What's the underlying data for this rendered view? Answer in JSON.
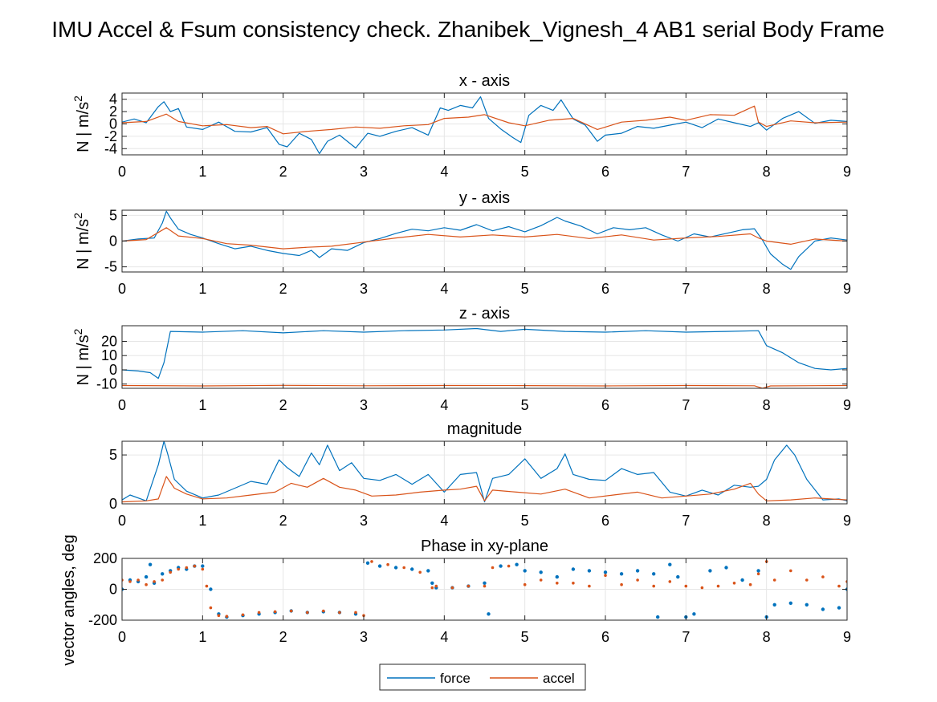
{
  "figure_title": "IMU Accel & Fsum consistency check. Zhanibek_Vignesh_4     AB1     serial  Body Frame",
  "legend": [
    {
      "label": "force",
      "color": "#0072BD"
    },
    {
      "label": "accel",
      "color": "#D95319"
    }
  ],
  "chart_data": [
    {
      "type": "line",
      "title": "x - axis",
      "ylabel": "N | m/s²",
      "xlim": [
        0,
        9
      ],
      "ylim": [
        -5,
        5
      ],
      "xticks": [
        0,
        1,
        2,
        3,
        4,
        5,
        6,
        7,
        8,
        9
      ],
      "yticks": [
        -4,
        -2,
        0,
        2,
        4
      ],
      "grid": true,
      "series": [
        {
          "name": "force",
          "color": "#0072BD",
          "style": "line",
          "x": [
            0,
            0.15,
            0.3,
            0.45,
            0.52,
            0.6,
            0.7,
            0.8,
            1.0,
            1.2,
            1.4,
            1.6,
            1.8,
            1.95,
            2.05,
            2.2,
            2.35,
            2.45,
            2.55,
            2.7,
            2.9,
            3.05,
            3.2,
            3.4,
            3.6,
            3.8,
            3.95,
            4.05,
            4.2,
            4.35,
            4.45,
            4.55,
            4.7,
            4.85,
            4.95,
            5.05,
            5.2,
            5.35,
            5.45,
            5.6,
            5.75,
            5.9,
            6.0,
            6.2,
            6.4,
            6.6,
            6.8,
            7.0,
            7.2,
            7.4,
            7.6,
            7.8,
            7.9,
            8.0,
            8.2,
            8.4,
            8.6,
            8.8,
            9.0
          ],
          "y": [
            0.3,
            0.8,
            0.2,
            2.8,
            3.6,
            2.0,
            2.5,
            -0.5,
            -0.9,
            0.3,
            -1.2,
            -1.3,
            -0.6,
            -3.3,
            -3.7,
            -1.5,
            -2.5,
            -4.8,
            -2.8,
            -1.8,
            -3.9,
            -1.5,
            -2.0,
            -1.2,
            -0.6,
            -1.8,
            2.6,
            2.2,
            3.0,
            2.6,
            4.4,
            0.9,
            -0.8,
            -2.2,
            -3.0,
            1.4,
            3.0,
            2.2,
            3.9,
            0.8,
            -0.2,
            -2.8,
            -1.8,
            -1.5,
            -0.4,
            -0.7,
            -0.2,
            0.3,
            -0.6,
            0.8,
            0.2,
            -0.4,
            0.2,
            -1.0,
            0.9,
            2.0,
            0.1,
            0.6,
            0.4
          ]
        },
        {
          "name": "accel",
          "color": "#D95319",
          "style": "line",
          "x": [
            0,
            0.3,
            0.55,
            0.7,
            1.0,
            1.3,
            1.6,
            1.8,
            2.0,
            2.3,
            2.6,
            2.9,
            3.2,
            3.5,
            3.8,
            4.0,
            4.3,
            4.5,
            4.8,
            5.0,
            5.3,
            5.6,
            5.9,
            6.2,
            6.5,
            6.8,
            7.0,
            7.3,
            7.6,
            7.85,
            7.9,
            8.0,
            8.3,
            8.6,
            9.0
          ],
          "y": [
            0.2,
            0.4,
            1.6,
            0.4,
            -0.3,
            -0.1,
            -0.6,
            -0.4,
            -1.6,
            -1.2,
            -0.9,
            -0.5,
            -0.7,
            -0.3,
            -0.1,
            0.9,
            1.1,
            1.5,
            0.2,
            -0.3,
            0.6,
            0.9,
            -0.9,
            0.3,
            0.6,
            1.1,
            0.6,
            1.5,
            1.4,
            2.9,
            0.3,
            -0.4,
            0.5,
            0.2,
            0.3
          ]
        }
      ]
    },
    {
      "type": "line",
      "title": "y - axis",
      "ylabel": "N | m/s²",
      "xlim": [
        0,
        9
      ],
      "ylim": [
        -6,
        6
      ],
      "xticks": [
        0,
        1,
        2,
        3,
        4,
        5,
        6,
        7,
        8,
        9
      ],
      "yticks": [
        -5,
        0,
        5
      ],
      "grid": true,
      "series": [
        {
          "name": "force",
          "color": "#0072BD",
          "style": "line",
          "x": [
            0,
            0.2,
            0.4,
            0.5,
            0.55,
            0.6,
            0.7,
            0.85,
            1.0,
            1.2,
            1.4,
            1.6,
            1.8,
            2.0,
            2.2,
            2.35,
            2.45,
            2.6,
            2.8,
            3.0,
            3.2,
            3.4,
            3.6,
            3.8,
            4.0,
            4.2,
            4.4,
            4.6,
            4.8,
            5.0,
            5.2,
            5.4,
            5.5,
            5.7,
            5.9,
            6.1,
            6.3,
            6.5,
            6.7,
            6.9,
            7.1,
            7.3,
            7.5,
            7.7,
            7.85,
            7.95,
            8.05,
            8.2,
            8.3,
            8.4,
            8.6,
            8.8,
            9.0
          ],
          "y": [
            0.0,
            0.4,
            0.6,
            3.5,
            5.8,
            4.5,
            2.3,
            1.3,
            0.6,
            -0.5,
            -1.5,
            -1.0,
            -1.8,
            -2.4,
            -2.8,
            -1.8,
            -3.2,
            -1.5,
            -1.8,
            -0.3,
            0.5,
            1.5,
            2.3,
            2.0,
            2.6,
            2.1,
            3.2,
            2.0,
            2.8,
            1.8,
            3.0,
            4.6,
            3.9,
            2.9,
            1.4,
            2.6,
            2.2,
            2.6,
            1.2,
            0.0,
            1.4,
            0.8,
            1.5,
            2.2,
            2.4,
            0.2,
            -2.5,
            -4.5,
            -5.5,
            -3.0,
            0.0,
            0.6,
            0.2
          ]
        },
        {
          "name": "accel",
          "color": "#D95319",
          "style": "line",
          "x": [
            0,
            0.3,
            0.55,
            0.7,
            1.0,
            1.3,
            1.6,
            2.0,
            2.3,
            2.6,
            3.0,
            3.4,
            3.8,
            4.2,
            4.6,
            5.0,
            5.4,
            5.8,
            6.2,
            6.6,
            7.0,
            7.4,
            7.8,
            7.9,
            8.0,
            8.3,
            8.6,
            9.0
          ],
          "y": [
            0.0,
            0.3,
            2.6,
            1.0,
            0.5,
            -0.5,
            -0.8,
            -1.5,
            -1.2,
            -1.0,
            -0.2,
            0.6,
            1.3,
            0.8,
            1.2,
            0.8,
            1.3,
            0.5,
            1.2,
            0.2,
            0.6,
            0.9,
            1.4,
            0.6,
            0.0,
            -0.6,
            0.4,
            0.0
          ]
        }
      ]
    },
    {
      "type": "line",
      "title": "z - axis",
      "ylabel": "N | m/s²",
      "xlim": [
        0,
        9
      ],
      "ylim": [
        -13,
        31
      ],
      "xticks": [
        0,
        1,
        2,
        3,
        4,
        5,
        6,
        7,
        8,
        9
      ],
      "yticks": [
        -10,
        0,
        10,
        20
      ],
      "grid": true,
      "series": [
        {
          "name": "force",
          "color": "#0072BD",
          "style": "line",
          "x": [
            0,
            0.2,
            0.35,
            0.45,
            0.52,
            0.6,
            1.0,
            1.5,
            2.0,
            2.5,
            3.0,
            3.5,
            4.0,
            4.4,
            4.7,
            5.0,
            5.5,
            6.0,
            6.5,
            7.0,
            7.5,
            7.9,
            8.0,
            8.2,
            8.4,
            8.6,
            8.8,
            9.0
          ],
          "y": [
            0.0,
            -0.8,
            -2.0,
            -6.0,
            5.0,
            27.0,
            26.5,
            27.5,
            26.0,
            27.5,
            26.5,
            27.5,
            28.0,
            29.0,
            27.0,
            28.5,
            27.0,
            26.5,
            27.5,
            26.5,
            27.0,
            27.5,
            17.0,
            12.0,
            5.0,
            1.0,
            0.0,
            1.0
          ]
        },
        {
          "name": "accel",
          "color": "#D95319",
          "style": "line",
          "x": [
            0,
            1,
            2,
            3,
            4,
            5,
            6,
            7,
            7.85,
            7.95,
            8.05,
            9.0
          ],
          "y": [
            -11.0,
            -11.3,
            -10.9,
            -11.2,
            -11.0,
            -11.1,
            -11.3,
            -11.0,
            -11.2,
            -13.0,
            -11.3,
            -11.0
          ]
        }
      ]
    },
    {
      "type": "line",
      "title": "magnitude",
      "ylabel": "",
      "xlim": [
        0,
        9
      ],
      "ylim": [
        0,
        6.4
      ],
      "xticks": [
        0,
        1,
        2,
        3,
        4,
        5,
        6,
        7,
        8,
        9
      ],
      "yticks": [
        0,
        5
      ],
      "grid": true,
      "series": [
        {
          "name": "force",
          "color": "#0072BD",
          "style": "line",
          "x": [
            0,
            0.1,
            0.3,
            0.45,
            0.52,
            0.57,
            0.65,
            0.8,
            1.0,
            1.2,
            1.4,
            1.6,
            1.8,
            1.95,
            2.05,
            2.2,
            2.35,
            2.45,
            2.55,
            2.7,
            2.85,
            3.0,
            3.2,
            3.4,
            3.6,
            3.8,
            4.0,
            4.2,
            4.4,
            4.5,
            4.6,
            4.8,
            5.0,
            5.2,
            5.4,
            5.5,
            5.6,
            5.8,
            6.0,
            6.2,
            6.4,
            6.6,
            6.8,
            7.0,
            7.2,
            7.4,
            7.6,
            7.8,
            7.9,
            8.0,
            8.1,
            8.25,
            8.35,
            8.5,
            8.7,
            8.9,
            9.0
          ],
          "y": [
            0.4,
            0.9,
            0.3,
            4.0,
            6.4,
            5.0,
            2.5,
            1.3,
            0.6,
            0.9,
            1.6,
            2.3,
            2.0,
            4.5,
            3.7,
            2.8,
            5.2,
            4.0,
            6.0,
            3.4,
            4.2,
            2.6,
            2.4,
            3.0,
            2.0,
            3.0,
            1.2,
            3.0,
            3.2,
            0.2,
            2.6,
            3.0,
            4.6,
            2.6,
            3.6,
            5.1,
            3.0,
            2.5,
            2.4,
            3.6,
            3.0,
            3.2,
            1.2,
            0.8,
            1.4,
            0.9,
            1.9,
            1.7,
            1.8,
            2.5,
            4.5,
            6.0,
            5.0,
            2.5,
            0.4,
            0.5,
            0.3
          ]
        },
        {
          "name": "accel",
          "color": "#D95319",
          "style": "line",
          "x": [
            0,
            0.3,
            0.45,
            0.55,
            0.65,
            0.8,
            1.0,
            1.3,
            1.6,
            1.9,
            2.1,
            2.3,
            2.5,
            2.7,
            2.9,
            3.1,
            3.4,
            3.7,
            4.0,
            4.2,
            4.4,
            4.5,
            4.6,
            4.9,
            5.2,
            5.5,
            5.8,
            6.1,
            6.4,
            6.7,
            7.0,
            7.3,
            7.6,
            7.8,
            7.9,
            8.0,
            8.3,
            8.6,
            9.0
          ],
          "y": [
            0.2,
            0.3,
            0.5,
            2.8,
            1.6,
            1.0,
            0.5,
            0.6,
            0.9,
            1.2,
            2.1,
            1.7,
            2.6,
            1.7,
            1.4,
            0.8,
            0.9,
            1.2,
            1.4,
            1.5,
            1.8,
            0.3,
            1.4,
            1.2,
            1.0,
            1.5,
            0.6,
            0.9,
            1.2,
            0.6,
            0.8,
            1.0,
            1.5,
            2.1,
            1.0,
            0.3,
            0.4,
            0.6,
            0.4
          ]
        }
      ]
    },
    {
      "type": "scatter",
      "title": "Phase in xy-plane",
      "ylabel": "vector angles, deg",
      "xlim": [
        0,
        9
      ],
      "ylim": [
        -200,
        200
      ],
      "xticks": [
        0,
        1,
        2,
        3,
        4,
        5,
        6,
        7,
        8,
        9
      ],
      "yticks": [
        -200,
        0,
        200
      ],
      "grid": true,
      "series": [
        {
          "name": "force",
          "color": "#0072BD",
          "style": "points",
          "x": [
            0,
            0.1,
            0.2,
            0.3,
            0.35,
            0.4,
            0.5,
            0.6,
            0.7,
            0.8,
            0.9,
            1.0,
            1.1,
            1.2,
            1.3,
            1.5,
            1.7,
            1.9,
            2.1,
            2.3,
            2.5,
            2.7,
            2.9,
            3.05,
            3.2,
            3.4,
            3.6,
            3.8,
            3.85,
            3.9,
            4.1,
            4.3,
            4.5,
            4.55,
            4.7,
            4.9,
            5.0,
            5.2,
            5.4,
            5.6,
            5.8,
            6.0,
            6.2,
            6.4,
            6.6,
            6.65,
            6.8,
            6.9,
            7.0,
            7.1,
            7.3,
            7.5,
            7.7,
            7.9,
            8.0,
            8.1,
            8.3,
            8.5,
            8.7,
            8.9,
            9.0
          ],
          "y": [
            0,
            60,
            50,
            80,
            160,
            40,
            100,
            120,
            140,
            130,
            150,
            150,
            0,
            -160,
            -180,
            -170,
            -160,
            -150,
            -140,
            -150,
            -145,
            -150,
            -160,
            170,
            150,
            140,
            130,
            120,
            40,
            10,
            10,
            20,
            40,
            -160,
            150,
            160,
            120,
            110,
            80,
            130,
            120,
            110,
            100,
            120,
            100,
            -180,
            160,
            80,
            -180,
            -160,
            120,
            140,
            60,
            120,
            -180,
            -100,
            -90,
            -100,
            -130,
            -120,
            0
          ]
        },
        {
          "name": "accel",
          "color": "#D95319",
          "style": "points",
          "x": [
            0,
            0.1,
            0.2,
            0.3,
            0.4,
            0.5,
            0.6,
            0.7,
            0.8,
            0.9,
            1.0,
            1.05,
            1.1,
            1.2,
            1.3,
            1.5,
            1.7,
            1.9,
            2.1,
            2.3,
            2.5,
            2.7,
            2.9,
            3.0,
            3.1,
            3.3,
            3.5,
            3.7,
            3.85,
            3.9,
            4.1,
            4.3,
            4.5,
            4.6,
            4.8,
            5.0,
            5.2,
            5.4,
            5.6,
            5.8,
            6.0,
            6.2,
            6.4,
            6.6,
            6.8,
            7.0,
            7.2,
            7.4,
            7.6,
            7.8,
            7.9,
            8.0,
            8.1,
            8.3,
            8.5,
            8.7,
            8.9,
            9.0
          ],
          "y": [
            60,
            50,
            60,
            30,
            50,
            60,
            110,
            130,
            140,
            150,
            130,
            20,
            -120,
            -170,
            -175,
            -165,
            -150,
            -145,
            -140,
            -150,
            -140,
            -150,
            -150,
            -170,
            180,
            160,
            140,
            110,
            10,
            20,
            10,
            20,
            20,
            140,
            150,
            30,
            60,
            40,
            40,
            20,
            90,
            30,
            60,
            20,
            50,
            20,
            10,
            20,
            40,
            30,
            100,
            180,
            60,
            120,
            60,
            80,
            20,
            50
          ]
        }
      ]
    }
  ]
}
